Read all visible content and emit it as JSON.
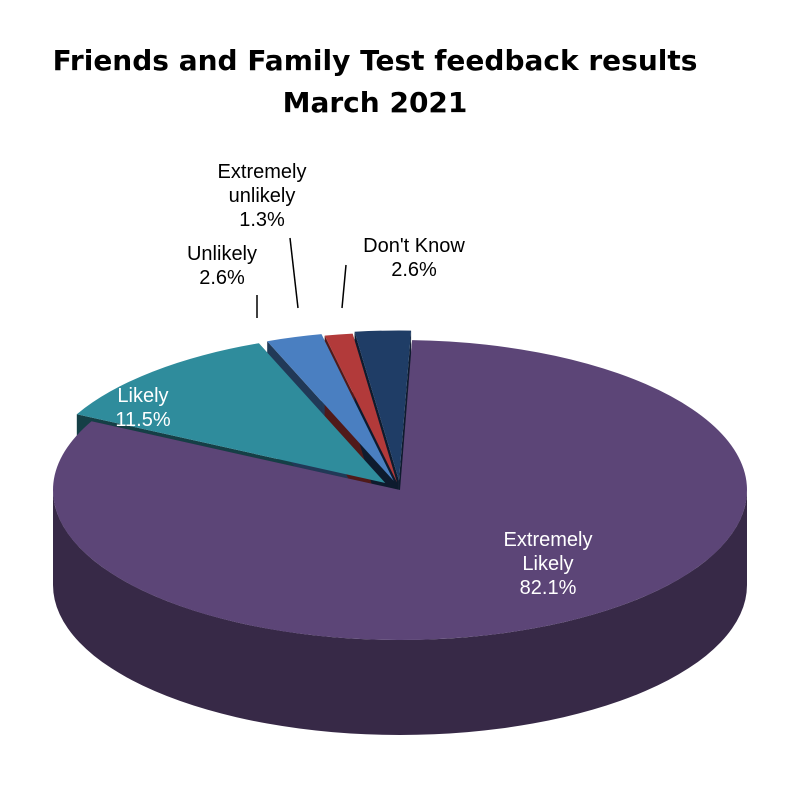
{
  "chart_data": {
    "type": "pie",
    "title_line1": "Friends and Family Test feedback results",
    "title_line2": "March 2021",
    "slices": [
      {
        "name": "Extremely Likely",
        "lines": [
          "Extremely",
          "Likely"
        ],
        "value_label": "82.1%",
        "value": 82.1,
        "color": "#5c4577"
      },
      {
        "name": "Likely",
        "lines": [
          "Likely"
        ],
        "value_label": "11.5%",
        "value": 11.5,
        "color": "#2f8c9c"
      },
      {
        "name": "Unlikely",
        "lines": [
          "Unlikely"
        ],
        "value_label": "2.6%",
        "value": 2.6,
        "color": "#4a7fc1"
      },
      {
        "name": "Extremely unlikely",
        "lines": [
          "Extremely",
          "unlikely"
        ],
        "value_label": "1.3%",
        "value": 1.3,
        "color": "#b23a3a"
      },
      {
        "name": "Don't Know",
        "lines": [
          "Don't Know"
        ],
        "value_label": "2.6%",
        "value": 2.6,
        "color": "#1f3d66"
      }
    ]
  }
}
